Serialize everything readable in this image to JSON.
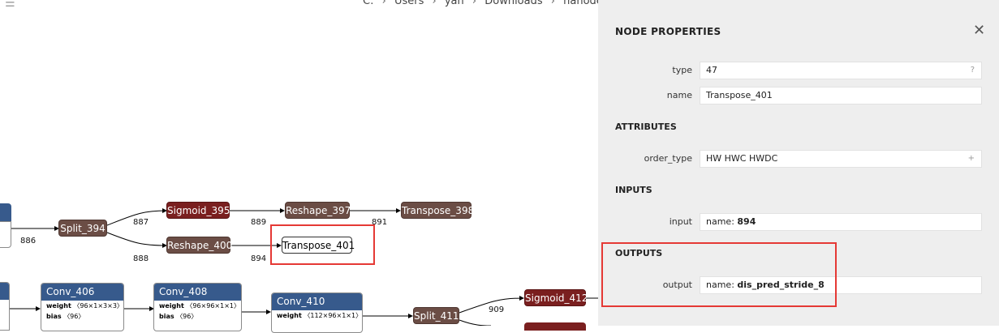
{
  "window": {
    "path": [
      "C:",
      "Users",
      "yan",
      "Downloads",
      "nanodet_m.param"
    ],
    "path_sep": "›",
    "controls": [
      "—",
      "☐",
      "✕"
    ]
  },
  "graph": {
    "nodes": {
      "split_394": "Split_394",
      "sigmoid_395": "Sigmoid_395",
      "reshape_397": "Reshape_397",
      "transpose_398": "Transpose_398",
      "reshape_400": "Reshape_400",
      "transpose_401": "Transpose_401",
      "split_411": "Split_411",
      "sigmoid_412": "Sigmoid_412"
    },
    "edges": {
      "e886": "886",
      "e887": "887",
      "e888": "888",
      "e889": "889",
      "e891": "891",
      "e894": "894",
      "e909": "909"
    },
    "conv_406": {
      "title": "Conv_406",
      "weight_key": "weight",
      "weight_val": "〈96×1×3×3〉",
      "bias_key": "bias",
      "bias_val": "〈96〉"
    },
    "conv_408": {
      "title": "Conv_408",
      "weight_key": "weight",
      "weight_val": "〈96×96×1×1〉",
      "bias_key": "bias",
      "bias_val": "〈96〉"
    },
    "conv_410": {
      "title": "Conv_410",
      "weight_key": "weight",
      "weight_val": "〈112×96×1×1〉"
    }
  },
  "panel": {
    "title": "NODE PROPERTIES",
    "close_icon": "close-icon",
    "type_label": "type",
    "type_value": "47",
    "type_help": "?",
    "name_label": "name",
    "name_value": "Transpose_401",
    "attributes_header": "ATTRIBUTES",
    "order_type_label": "order_type",
    "order_type_value": "HW HWC HWDC",
    "order_type_expand": "+",
    "inputs_header": "INPUTS",
    "input_label": "input",
    "input_prefix": "name: ",
    "input_value": "894",
    "outputs_header": "OUTPUTS",
    "output_label": "output",
    "output_prefix": "name: ",
    "output_value": "dis_pred_stride_8"
  },
  "colors": {
    "operator_node": "#6b4d45",
    "activation_node": "#7a1f1f",
    "layer_node": "#375a8c",
    "highlight": "#e53935",
    "panel_bg": "#eeeeee"
  }
}
